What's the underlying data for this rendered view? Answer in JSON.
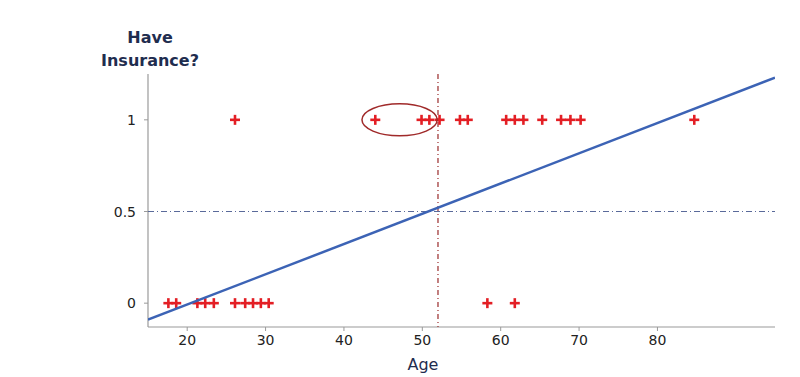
{
  "chart_data": {
    "type": "scatter",
    "title": "Have Insurance?",
    "x_label": "Age",
    "xlim": [
      15,
      95
    ],
    "ylim": [
      -0.13,
      1.25
    ],
    "xticks": [
      20,
      30,
      40,
      50,
      60,
      70,
      80
    ],
    "yticks": [
      0,
      0.5,
      1
    ],
    "grid": false,
    "series": [
      {
        "type": "scatter",
        "color": "#e31e24",
        "marker": "plus",
        "x": [
          26.1,
          44.0,
          49.9,
          50.9,
          52.2,
          54.8,
          55.8,
          60.7,
          61.8,
          62.9,
          65.3,
          67.7,
          68.9,
          70.2,
          84.7,
          17.6,
          18.6,
          21.3,
          22.3,
          23.4,
          26.1,
          27.4,
          28.4,
          29.4,
          30.4,
          58.3,
          61.8
        ],
        "values": [
          1,
          1,
          1,
          1,
          1,
          1,
          1,
          1,
          1,
          1,
          1,
          1,
          1,
          1,
          1,
          0,
          0,
          0,
          0,
          0,
          0,
          0,
          0,
          0,
          0,
          0,
          0
        ]
      },
      {
        "type": "line",
        "color": "#3c63b5",
        "line_style": "solid",
        "x": [
          15,
          95
        ],
        "values": [
          -0.09,
          1.23
        ]
      }
    ],
    "reference_lines": {
      "x": [
        52
      ],
      "y": [
        0.5
      ]
    },
    "highlight": {
      "xlim": [
        42.3,
        51.9
      ],
      "y": 1
    }
  }
}
